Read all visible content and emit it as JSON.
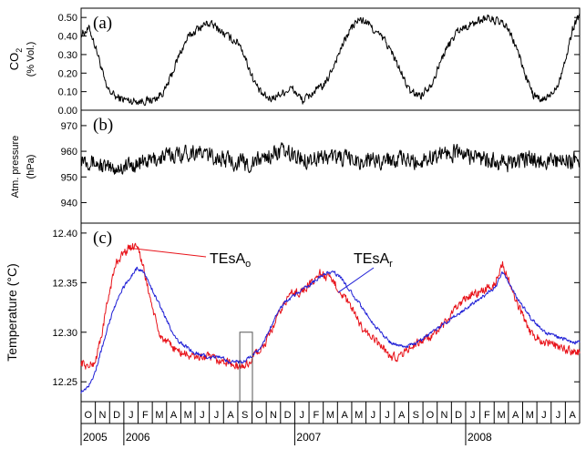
{
  "chart_data": [
    {
      "type": "line",
      "panel_label": "(a)",
      "ylabel": "CO",
      "ylabel_sub": "2",
      "ylabel_unit": "(% Vol.)",
      "ylim": [
        0,
        0.55
      ],
      "yticks": [
        0.0,
        0.1,
        0.2,
        0.3,
        0.4,
        0.5
      ],
      "ytick_labels": [
        "0.00",
        "0.10",
        "0.20",
        "0.30",
        "0.40",
        "0.50"
      ],
      "x_unit": "month index from Oct 2005",
      "xlim": [
        0,
        35.5
      ],
      "series": [
        {
          "color": "#000000",
          "noise": 0.03,
          "x": [
            0,
            0.6,
            1.2,
            1.8,
            2.5,
            3.5,
            4.6,
            5.3,
            6.0,
            6.5,
            7.0,
            7.6,
            8.3,
            9.0,
            9.6,
            10.2,
            10.8,
            11.3,
            11.8,
            12.3,
            12.8,
            13.4,
            14.0,
            15.0,
            15.8,
            16.6,
            17.4,
            18.2,
            18.8,
            19.2,
            19.8,
            20.4,
            21.0,
            21.6,
            22.2,
            22.8,
            23.4,
            24.2,
            25.0,
            25.8,
            26.8,
            28.0,
            28.8,
            29.6,
            30.3,
            31.0,
            31.6,
            32.2,
            32.8,
            33.4,
            34.0,
            34.6,
            35.0,
            35.5
          ],
          "y": [
            0.41,
            0.44,
            0.3,
            0.12,
            0.07,
            0.05,
            0.05,
            0.06,
            0.11,
            0.2,
            0.3,
            0.39,
            0.44,
            0.47,
            0.45,
            0.41,
            0.38,
            0.36,
            0.26,
            0.16,
            0.09,
            0.06,
            0.08,
            0.12,
            0.05,
            0.1,
            0.14,
            0.28,
            0.38,
            0.44,
            0.49,
            0.47,
            0.42,
            0.38,
            0.3,
            0.2,
            0.1,
            0.08,
            0.15,
            0.3,
            0.43,
            0.47,
            0.5,
            0.48,
            0.45,
            0.34,
            0.2,
            0.08,
            0.05,
            0.08,
            0.15,
            0.3,
            0.44,
            0.52
          ]
        }
      ]
    },
    {
      "type": "line",
      "panel_label": "(b)",
      "ylabel": "Atm. pressure",
      "ylabel_unit": "(hPa)",
      "ylim": [
        932,
        976
      ],
      "yticks": [
        940,
        950,
        960,
        970
      ],
      "ytick_labels": [
        "940",
        "950",
        "960",
        "970"
      ],
      "x_unit": "month index from Oct 2005",
      "xlim": [
        0,
        35.5
      ],
      "series": [
        {
          "color": "#000000",
          "noise": 4.5,
          "x": [
            0,
            2,
            4,
            6,
            8,
            10,
            12,
            14,
            16,
            18,
            20,
            22,
            24,
            26,
            28,
            30,
            32,
            34,
            35.5
          ],
          "y": [
            958,
            953,
            955,
            958,
            960,
            957,
            955,
            960,
            957,
            958,
            956,
            957,
            956,
            960,
            958,
            955,
            957,
            956,
            957
          ]
        }
      ]
    },
    {
      "type": "line",
      "panel_label": "(c)",
      "ylabel": "Temperature (°C)",
      "ylim": [
        12.23,
        12.41
      ],
      "yticks": [
        12.25,
        12.3,
        12.35,
        12.4
      ],
      "ytick_labels": [
        "12.25",
        "12.30",
        "12.35",
        "12.40"
      ],
      "x_unit": "month index from Oct 2005",
      "xlim": [
        0,
        35.5
      ],
      "series": [
        {
          "name": "TEsA",
          "name_sub": "o",
          "color": "#e8141b",
          "noise": 0.006,
          "x": [
            0,
            0.5,
            1,
            1.5,
            2,
            2.5,
            3,
            3.5,
            4,
            4.5,
            5,
            5.5,
            6,
            7,
            8,
            9,
            10,
            10.5,
            11,
            11.5,
            12,
            12.5,
            13,
            13.5,
            14,
            14.5,
            15,
            15.5,
            16,
            16.5,
            17,
            18,
            19,
            20,
            21,
            21.5,
            22,
            22.5,
            23,
            24,
            25,
            26,
            26.5,
            27,
            27.5,
            28,
            28.5,
            29,
            29.5,
            30,
            30.5,
            31,
            32,
            33,
            34,
            35,
            35.5
          ],
          "y": [
            12.27,
            12.265,
            12.27,
            12.3,
            12.34,
            12.37,
            12.38,
            12.385,
            12.39,
            12.36,
            12.33,
            12.3,
            12.29,
            12.28,
            12.275,
            12.275,
            12.27,
            12.27,
            12.265,
            12.265,
            12.27,
            12.28,
            12.285,
            12.3,
            12.315,
            12.33,
            12.34,
            12.34,
            12.345,
            12.35,
            12.36,
            12.35,
            12.33,
            12.305,
            12.29,
            12.285,
            12.275,
            12.275,
            12.28,
            12.29,
            12.295,
            12.31,
            12.32,
            12.33,
            12.335,
            12.34,
            12.34,
            12.345,
            12.35,
            12.37,
            12.35,
            12.33,
            12.3,
            12.29,
            12.285,
            12.28,
            12.28
          ]
        },
        {
          "name": "TEsA",
          "name_sub": "r",
          "color": "#1f1fd6",
          "noise": 0.0025,
          "x": [
            0,
            0.5,
            1,
            1.5,
            2,
            2.5,
            3,
            3.5,
            4,
            4.5,
            5,
            5.5,
            6,
            6.5,
            7,
            8,
            9,
            10,
            10.5,
            11,
            11.5,
            12,
            12.5,
            13,
            13.5,
            14,
            14.5,
            15,
            15.5,
            16,
            16.5,
            17,
            17.5,
            18,
            18.5,
            19,
            20,
            21,
            22,
            23,
            24,
            25,
            26,
            27,
            28,
            29,
            29.5,
            30,
            30.5,
            31,
            32,
            33,
            34,
            35,
            35.5
          ],
          "y": [
            12.24,
            12.245,
            12.26,
            12.285,
            12.31,
            12.33,
            12.345,
            12.355,
            12.365,
            12.36,
            12.345,
            12.33,
            12.315,
            12.3,
            12.29,
            12.28,
            12.275,
            12.275,
            12.27,
            12.27,
            12.27,
            12.275,
            12.28,
            12.29,
            12.305,
            12.32,
            12.33,
            12.335,
            12.34,
            12.345,
            12.35,
            12.355,
            12.36,
            12.36,
            12.355,
            12.345,
            12.325,
            12.305,
            12.29,
            12.285,
            12.29,
            12.3,
            12.31,
            12.32,
            12.33,
            12.34,
            12.345,
            12.36,
            12.35,
            12.335,
            12.315,
            12.3,
            12.295,
            12.29,
            12.29
          ]
        }
      ],
      "annotation_box": {
        "x0": 11.3,
        "x1": 12.2,
        "y0": 12.23,
        "y1": 12.3
      }
    }
  ],
  "x_axis": {
    "months": [
      "O",
      "N",
      "D",
      "J",
      "F",
      "M",
      "A",
      "M",
      "J",
      "J",
      "A",
      "S",
      "O",
      "N",
      "D",
      "J",
      "F",
      "M",
      "A",
      "M",
      "J",
      "J",
      "A",
      "S",
      "O",
      "N",
      "D",
      "J",
      "F",
      "M",
      "A",
      "M",
      "J",
      "J",
      "A"
    ],
    "years": [
      {
        "label": "2005",
        "month_index": 0
      },
      {
        "label": "2006",
        "month_index": 3
      },
      {
        "label": "2007",
        "month_index": 15
      },
      {
        "label": "2008",
        "month_index": 27
      }
    ]
  }
}
